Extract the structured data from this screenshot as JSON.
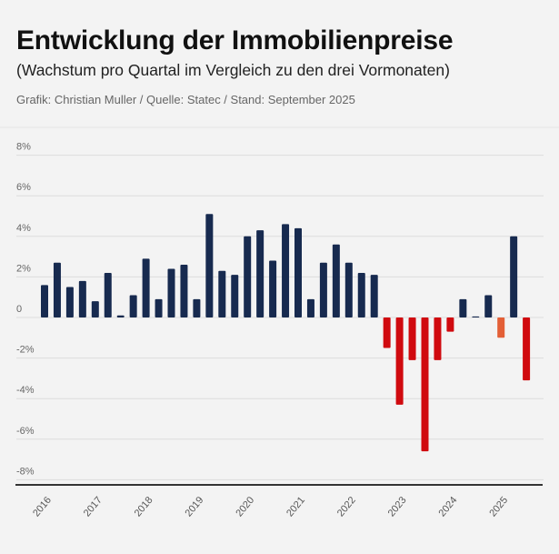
{
  "header": {
    "title": "Entwicklung der Immobilienpreise",
    "subtitle": "(Wachstum pro Quartal im Vergleich zu den drei Vormonaten)",
    "credit": "Grafik: Christian Muller / Quelle: Statec / Stand: September 2025"
  },
  "chart_data": {
    "type": "bar",
    "title": "Entwicklung der Immobilienpreise",
    "subtitle": "(Wachstum pro Quartal im Vergleich zu den drei Vormonaten)",
    "xlabel": "",
    "ylabel": "",
    "ylim": [
      -8,
      8
    ],
    "grid": true,
    "y_ticks": [
      "8%",
      "6%",
      "4%",
      "2%",
      "0",
      "-2%",
      "-4%",
      "-6%",
      "-8%"
    ],
    "y_tick_values": [
      8,
      6,
      4,
      2,
      0,
      -2,
      -4,
      -6,
      -8
    ],
    "x_tick_labels": [
      "2016",
      "2017",
      "2018",
      "2019",
      "2020",
      "2021",
      "2022",
      "2023",
      "2024",
      "2025"
    ],
    "quarters_start": "2016 Q1",
    "values": [
      1.6,
      2.7,
      1.5,
      1.8,
      0.8,
      2.2,
      0.1,
      1.1,
      2.9,
      0.9,
      2.4,
      2.6,
      0.9,
      5.1,
      2.3,
      2.1,
      4.0,
      4.3,
      2.8,
      4.6,
      4.4,
      0.9,
      2.7,
      3.6,
      2.7,
      2.2,
      2.1,
      -1.5,
      -4.3,
      -2.1,
      -6.6,
      -2.1,
      -0.7,
      0.9,
      0.05,
      1.1,
      -1.0,
      4.0,
      -3.1
    ],
    "highlighted_index": 36,
    "colors": {
      "positive": "#172a4f",
      "negative": "#d00a0f",
      "highlight": "#e35f36",
      "grid": "#dcdcdc",
      "axis": "#333333"
    }
  }
}
